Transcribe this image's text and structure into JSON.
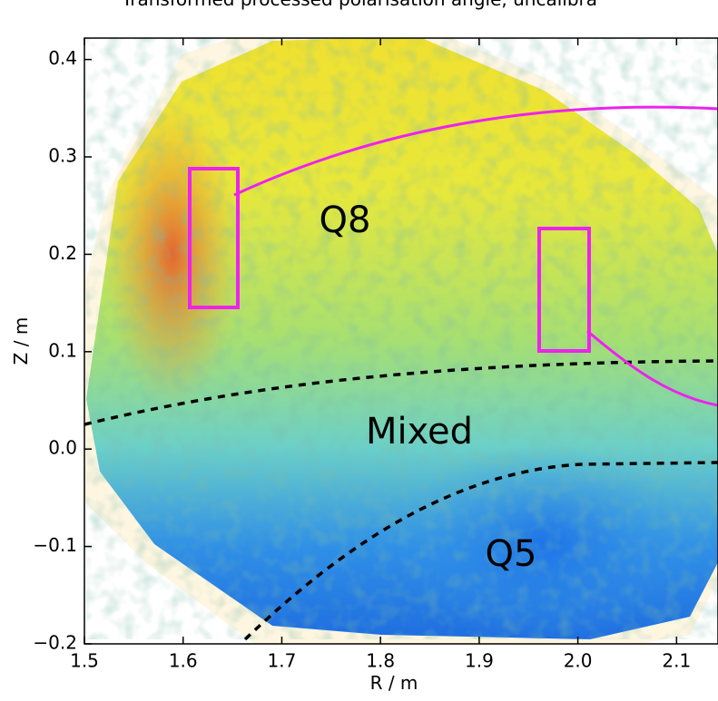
{
  "chart_data": {
    "type": "heatmap",
    "title": "Transformed processed polarisation angle, uncalibra",
    "xlabel": "R / m",
    "ylabel": "Z / m",
    "xlim": [
      1.5,
      2.142
    ],
    "ylim": [
      -0.2,
      0.422
    ],
    "xticks": [
      1.5,
      1.6,
      1.7,
      1.8,
      1.9,
      {
        "value": 2.0,
        "label": "2.0"
      },
      2.1
    ],
    "yticks": [
      {
        "value": -0.2,
        "label": "−0.2"
      },
      {
        "value": -0.1,
        "label": "−0.1"
      },
      {
        "value": 0,
        "label": "0.0"
      },
      0.1,
      0.2,
      0.3,
      0.4
    ],
    "annotations": [
      "Q8",
      "Mixed",
      "Q5"
    ]
  }
}
